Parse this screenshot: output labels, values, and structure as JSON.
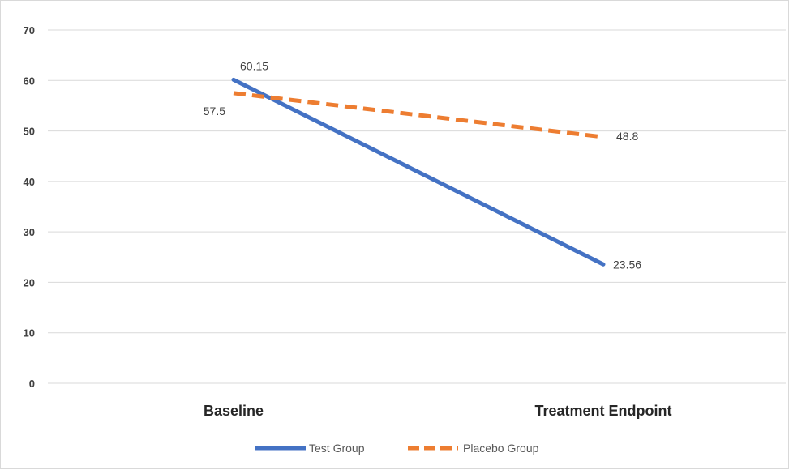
{
  "chart_data": {
    "type": "line",
    "title": "",
    "xlabel": "",
    "ylabel": "",
    "categories": [
      "Baseline",
      "Treatment Endpoint"
    ],
    "ylim": [
      0,
      70
    ],
    "yticks": [
      0,
      10,
      20,
      30,
      40,
      50,
      60,
      70
    ],
    "grid": true,
    "legend_position": "bottom",
    "series": [
      {
        "name": "Test Group",
        "values": [
          60.15,
          23.56
        ],
        "labels": [
          "60.15",
          "23.56"
        ],
        "color": "#4472c4",
        "dash": "solid"
      },
      {
        "name": "Placebo Group",
        "values": [
          57.5,
          48.8
        ],
        "labels": [
          "57.5",
          "48.8"
        ],
        "color": "#ed7d31",
        "dash": "dashed"
      }
    ]
  }
}
